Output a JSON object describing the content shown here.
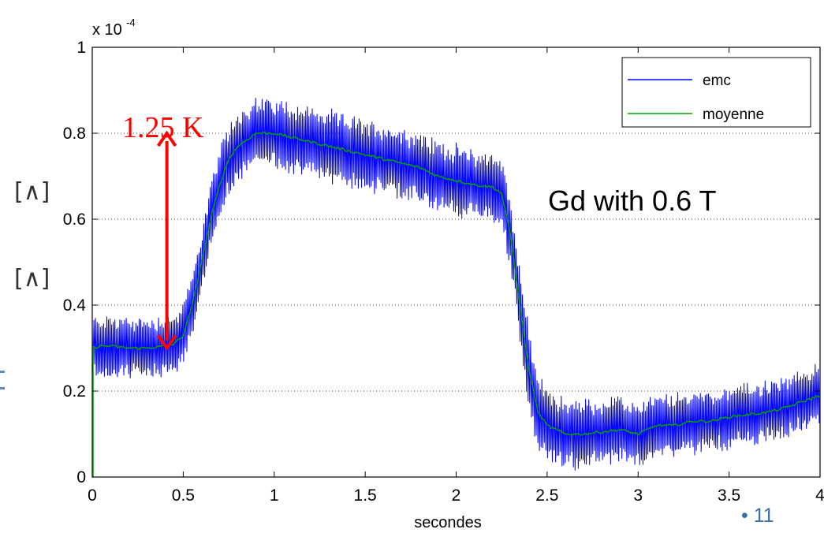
{
  "chart_data": {
    "type": "line",
    "xlabel": "secondes",
    "ylabel": "",
    "y_multiplier_label": "x 10",
    "y_multiplier_exponent": "-4",
    "xlim": [
      0,
      4
    ],
    "ylim": [
      0,
      1
    ],
    "xticks": [
      "0",
      "0.5",
      "1",
      "1.5",
      "2",
      "2.5",
      "3",
      "3.5",
      "4"
    ],
    "yticks": [
      "0",
      "0.2",
      "0.4",
      "0.6",
      "0.8",
      "1"
    ],
    "grid": "horizontal dotted",
    "legend_position": "top-right",
    "series": [
      {
        "name": "emc",
        "color": "#0000ff",
        "style": "noisy oscillation around mean",
        "amplitude": [
          [
            0.0,
            0.07
          ],
          [
            0.5,
            0.07
          ],
          [
            0.7,
            0.08
          ],
          [
            1.0,
            0.08
          ],
          [
            1.5,
            0.08
          ],
          [
            2.0,
            0.08
          ],
          [
            2.25,
            0.08
          ],
          [
            2.4,
            0.09
          ],
          [
            2.6,
            0.08
          ],
          [
            3.0,
            0.07
          ],
          [
            3.5,
            0.07
          ],
          [
            4.0,
            0.07
          ]
        ]
      },
      {
        "name": "moyenne",
        "color": "#00a000",
        "x": [
          0.0,
          0.05,
          0.1,
          0.2,
          0.3,
          0.4,
          0.45,
          0.5,
          0.55,
          0.6,
          0.65,
          0.7,
          0.75,
          0.8,
          0.9,
          1.0,
          1.1,
          1.2,
          1.3,
          1.4,
          1.5,
          1.6,
          1.7,
          1.8,
          1.9,
          2.0,
          2.1,
          2.2,
          2.25,
          2.3,
          2.35,
          2.4,
          2.45,
          2.5,
          2.6,
          2.7,
          2.8,
          2.9,
          3.0,
          3.1,
          3.2,
          3.3,
          3.4,
          3.5,
          3.6,
          3.7,
          3.8,
          3.9,
          4.0
        ],
        "y": [
          0.3,
          0.305,
          0.305,
          0.3,
          0.3,
          0.305,
          0.31,
          0.33,
          0.4,
          0.5,
          0.6,
          0.68,
          0.74,
          0.77,
          0.8,
          0.8,
          0.79,
          0.78,
          0.77,
          0.76,
          0.75,
          0.74,
          0.73,
          0.72,
          0.7,
          0.69,
          0.68,
          0.675,
          0.66,
          0.56,
          0.4,
          0.25,
          0.15,
          0.12,
          0.1,
          0.1,
          0.105,
          0.11,
          0.1,
          0.12,
          0.12,
          0.13,
          0.13,
          0.14,
          0.145,
          0.15,
          0.16,
          0.175,
          0.19
        ]
      }
    ],
    "annotations": {
      "delta_label": "1.25 K",
      "arrow_x": 0.41,
      "arrow_from_y": 0.3,
      "arrow_to_y": 0.8,
      "text_label": "Gd with 0.6 T"
    }
  },
  "slide": {
    "page_number": "• 11",
    "left_glyphs": [
      "[∧]",
      "[∧]"
    ]
  }
}
